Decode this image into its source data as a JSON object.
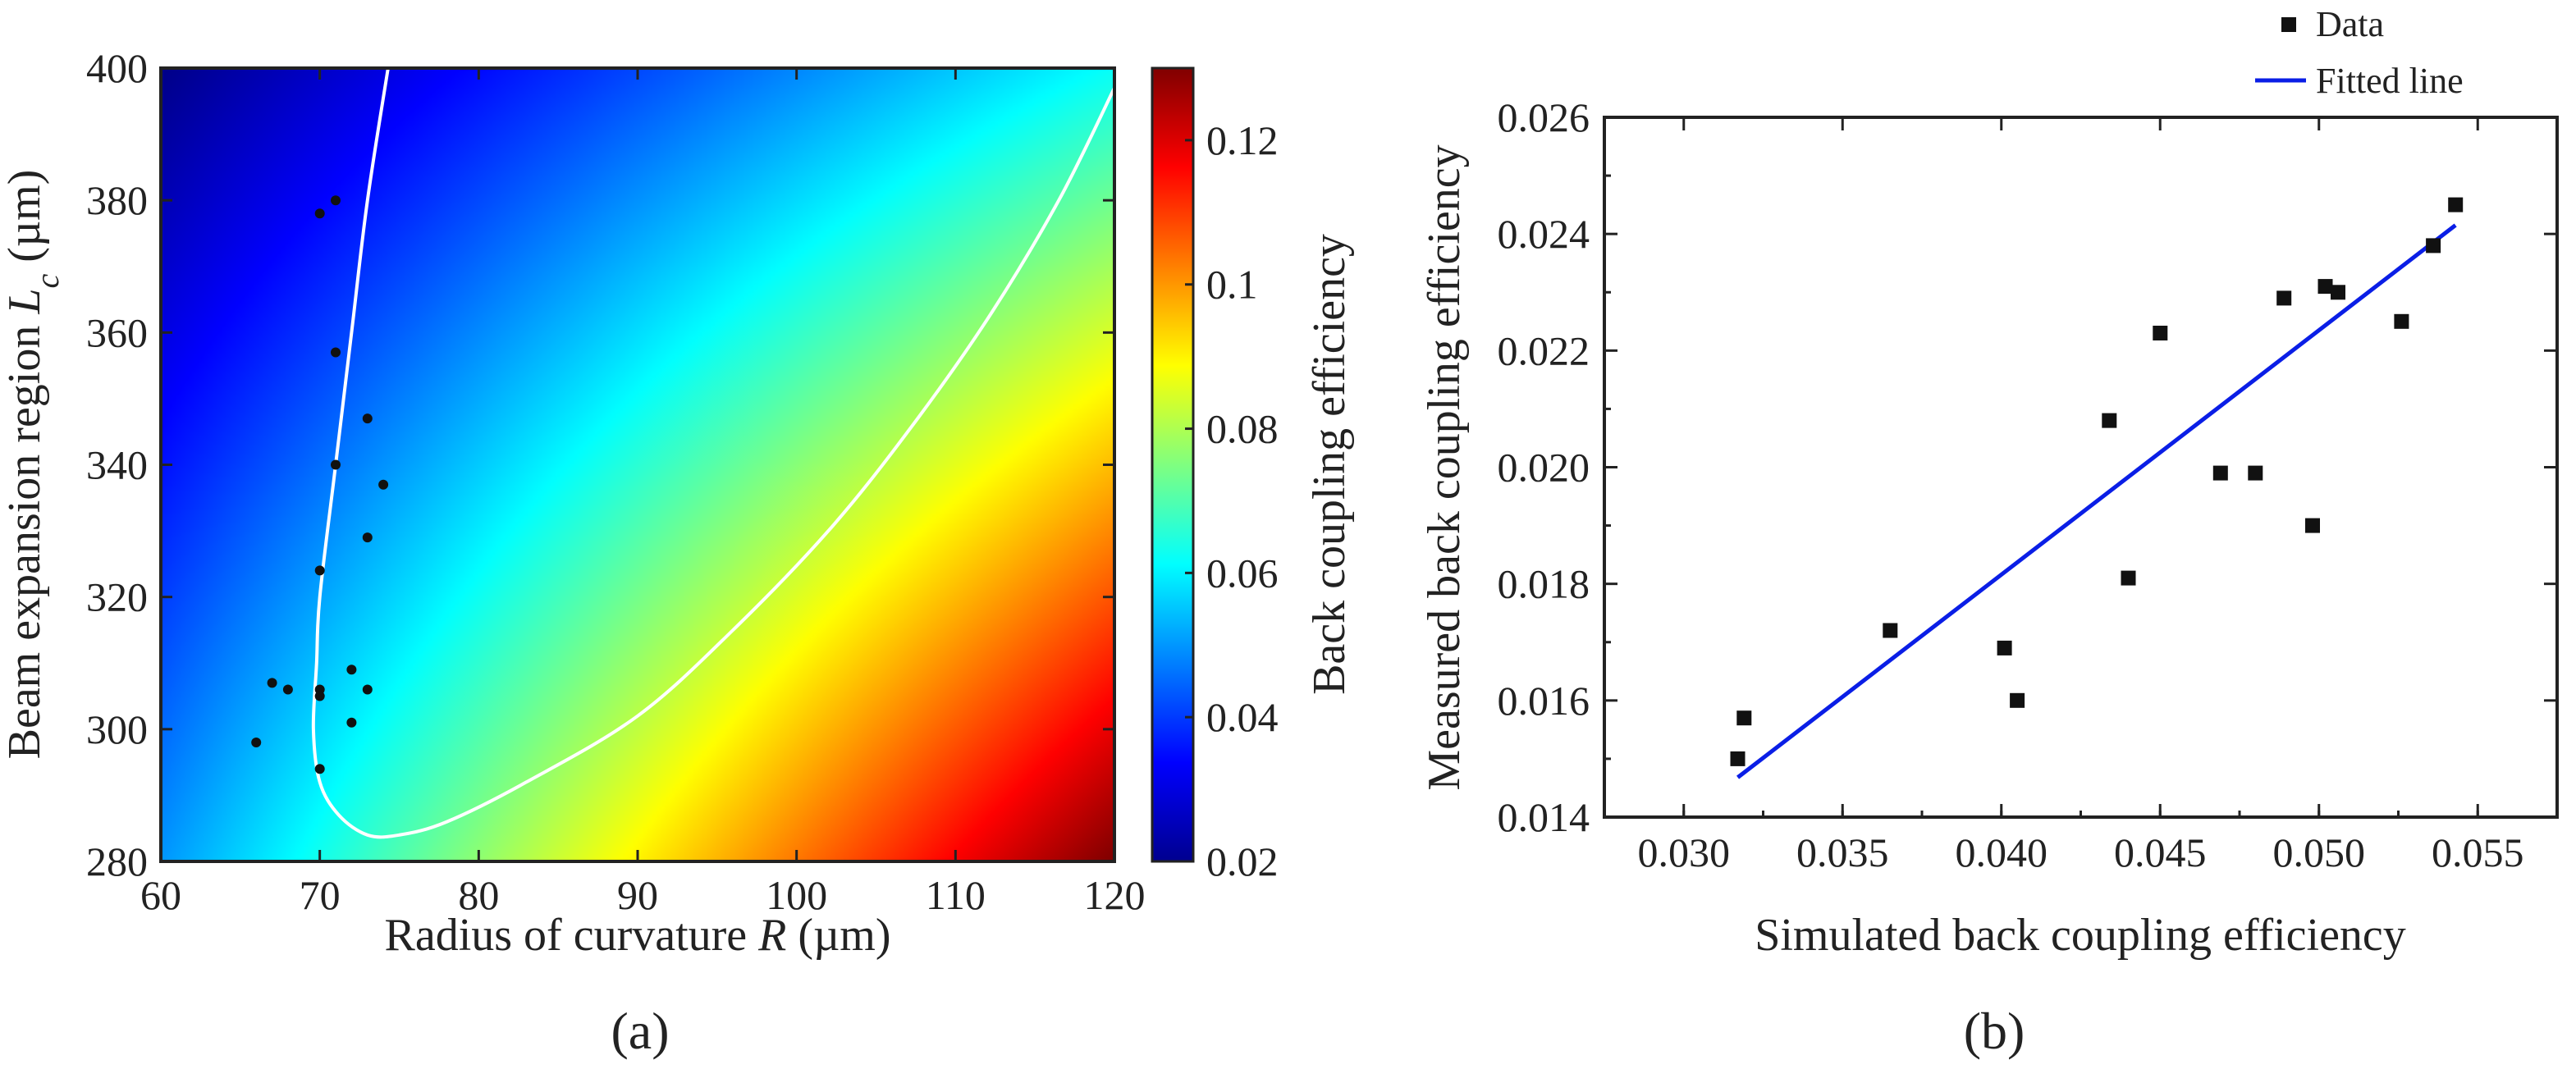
{
  "chart_data": [
    {
      "type": "heatmap",
      "panel_label": "(a)",
      "title": "",
      "xlabel_main": "Radius of curvature",
      "xlabel_var": "R",
      "xlabel_unit": "(µm)",
      "ylabel_main": "Beam expansion region",
      "ylabel_var": "L",
      "ylabel_sub": "c",
      "ylabel_unit": "(µm)",
      "xlim": [
        60,
        120
      ],
      "ylim": [
        280,
        400
      ],
      "x_ticks": [
        "60",
        "70",
        "80",
        "90",
        "100",
        "110",
        "120"
      ],
      "y_ticks": [
        "280",
        "300",
        "320",
        "340",
        "360",
        "380",
        "400"
      ],
      "colorbar": {
        "label": "Back coupling efficiency",
        "range": [
          0.02,
          0.13
        ],
        "ticks": [
          0.02,
          0.04,
          0.06,
          0.08,
          0.1,
          0.12
        ],
        "tick_labels": [
          "0.02",
          "0.04",
          "0.06",
          "0.08",
          "0.1",
          "0.12"
        ]
      },
      "field_corners": {
        "x60_y400": 0.021,
        "x60_y280": 0.05,
        "x120_y400": 0.062,
        "x120_y280": 0.13
      },
      "contour": [
        [
          74.3,
          400
        ],
        [
          73.0,
          380
        ],
        [
          72.0,
          360
        ],
        [
          71.0,
          340
        ],
        [
          70.0,
          320
        ],
        [
          69.8,
          310
        ],
        [
          69.6,
          300
        ],
        [
          70.0,
          292
        ],
        [
          71.2,
          287
        ],
        [
          73.0,
          284
        ],
        [
          75.0,
          284
        ],
        [
          78.0,
          286
        ],
        [
          83.0,
          292
        ],
        [
          90.0,
          302
        ],
        [
          96.0,
          315
        ],
        [
          102.0,
          330
        ],
        [
          107.0,
          345
        ],
        [
          112.0,
          362
        ],
        [
          116.5,
          380
        ],
        [
          120.0,
          397
        ]
      ],
      "points": [
        [
          70.0,
          378
        ],
        [
          71.0,
          380
        ],
        [
          71.0,
          357
        ],
        [
          71.0,
          340
        ],
        [
          73.0,
          347
        ],
        [
          74.0,
          337
        ],
        [
          73.0,
          329
        ],
        [
          70.0,
          324
        ],
        [
          67.0,
          307
        ],
        [
          68.0,
          306
        ],
        [
          70.0,
          306
        ],
        [
          70.0,
          305
        ],
        [
          72.0,
          309
        ],
        [
          73.0,
          306
        ],
        [
          72.0,
          301
        ],
        [
          66.0,
          298
        ],
        [
          70.0,
          294
        ]
      ]
    },
    {
      "type": "scatter",
      "panel_label": "(b)",
      "title": "",
      "xlabel": "Simulated back coupling efficiency",
      "ylabel": "Measured back coupling efficiency",
      "xlim": [
        0.0275,
        0.0575
      ],
      "ylim": [
        0.014,
        0.026
      ],
      "x_ticks": [
        0.03,
        0.035,
        0.04,
        0.045,
        0.05,
        0.055
      ],
      "x_tick_labels": [
        "0.030",
        "0.035",
        "0.040",
        "0.045",
        "0.050",
        "0.055"
      ],
      "y_ticks": [
        0.014,
        0.016,
        0.018,
        0.02,
        0.022,
        0.024,
        0.026
      ],
      "y_tick_labels": [
        "0.014",
        "0.016",
        "0.018",
        "0.020",
        "0.022",
        "0.024",
        "0.026"
      ],
      "legend": [
        {
          "label": "Data",
          "marker": "square",
          "color": "#111111"
        },
        {
          "label": "Fitted line",
          "marker": "line",
          "color": "#0a1ee6"
        }
      ],
      "legend_position": "top-right",
      "series": [
        {
          "name": "Data",
          "points": [
            [
              0.0317,
              0.015
            ],
            [
              0.0319,
              0.0157
            ],
            [
              0.0365,
              0.0172
            ],
            [
              0.0401,
              0.0169
            ],
            [
              0.0405,
              0.016
            ],
            [
              0.0434,
              0.0208
            ],
            [
              0.044,
              0.0181
            ],
            [
              0.045,
              0.0223
            ],
            [
              0.0469,
              0.0199
            ],
            [
              0.048,
              0.0199
            ],
            [
              0.0489,
              0.0229
            ],
            [
              0.0498,
              0.019
            ],
            [
              0.0502,
              0.0231
            ],
            [
              0.0506,
              0.023
            ],
            [
              0.0526,
              0.0225
            ],
            [
              0.0536,
              0.0238
            ],
            [
              0.0543,
              0.0245
            ]
          ]
        },
        {
          "name": "Fitted line",
          "line": [
            [
              0.0317,
              0.01468
            ],
            [
              0.0543,
              0.02415
            ]
          ]
        }
      ]
    }
  ]
}
